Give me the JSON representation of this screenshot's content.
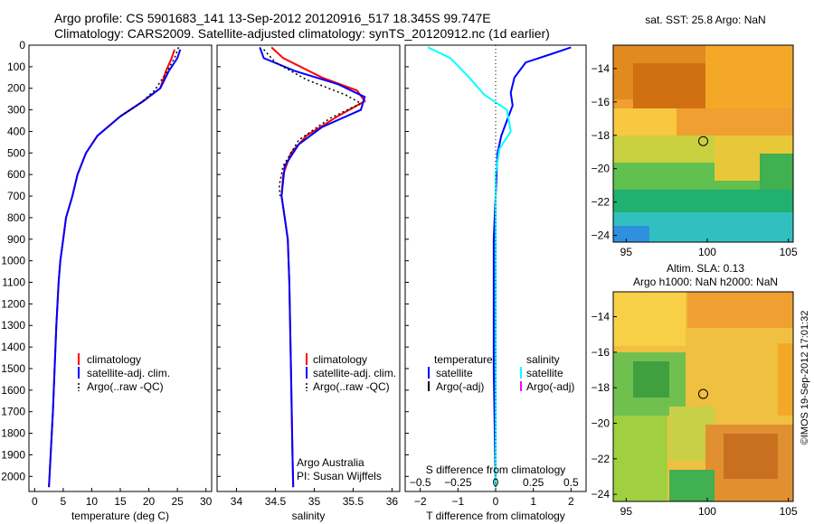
{
  "header": {
    "title_line1": "Argo profile: CS 5901683_141 13-Sep-2012 20120916_517 18.345S 99.747E",
    "title_line2": "Climatology: CARS2009. Satellite-adjusted climatology: synTS_20120912.nc (1d earlier)"
  },
  "depth_axis": {
    "ticks": [
      0,
      100,
      200,
      300,
      400,
      500,
      600,
      700,
      800,
      900,
      1000,
      1100,
      1200,
      1300,
      1400,
      1500,
      1600,
      1700,
      1800,
      1900,
      2000
    ],
    "range": [
      0,
      2070
    ]
  },
  "colors": {
    "climatology": "#ff0000",
    "satellite_adj": "#0000ff",
    "argo": "#000000",
    "salinity_satellite": "#00ffff",
    "salinity_argo": "#ff00ff",
    "map_land_ocean_cool": "#3399ff",
    "map_warm": "#e08020"
  },
  "chart_data": [
    {
      "type": "line",
      "panel": "temperature",
      "xlabel": "temperature (deg C)",
      "xlim": [
        -1,
        31
      ],
      "xticks": [
        0,
        5,
        10,
        15,
        20,
        25,
        30
      ],
      "legend": {
        "placement": "lower-left",
        "entries": [
          "climatology",
          "satellite-adj. clim.",
          "Argo(..raw -QC)"
        ]
      },
      "series": [
        {
          "name": "climatology",
          "color": "#ff0000",
          "points": [
            [
              24.5,
              20
            ],
            [
              24,
              60
            ],
            [
              23,
              120
            ],
            [
              22,
              200
            ],
            [
              19,
              260
            ],
            [
              15,
              330
            ],
            [
              11,
              420
            ],
            [
              9,
              500
            ],
            [
              7.5,
              600
            ],
            [
              6.6,
              700
            ],
            [
              5.5,
              800
            ],
            [
              5,
              900
            ],
            [
              4.5,
              1000
            ],
            [
              4.2,
              1100
            ],
            [
              3.8,
              1300
            ],
            [
              3.5,
              1500
            ],
            [
              3.2,
              1700
            ],
            [
              2.8,
              1900
            ],
            [
              2.5,
              2050
            ]
          ]
        },
        {
          "name": "satellite-adj. clim.",
          "color": "#0000ff",
          "points": [
            [
              25.5,
              20
            ],
            [
              25,
              60
            ],
            [
              23.5,
              120
            ],
            [
              22,
              200
            ],
            [
              19,
              260
            ],
            [
              15,
              330
            ],
            [
              11,
              420
            ],
            [
              9,
              500
            ],
            [
              7.5,
              600
            ],
            [
              6.6,
              700
            ],
            [
              5.5,
              800
            ],
            [
              5,
              900
            ],
            [
              4.5,
              1000
            ],
            [
              4.2,
              1100
            ],
            [
              3.8,
              1300
            ],
            [
              3.5,
              1500
            ],
            [
              3.2,
              1700
            ],
            [
              2.8,
              1900
            ],
            [
              2.5,
              2050
            ]
          ]
        },
        {
          "name": "Argo(..raw -QC)",
          "color": "#000000",
          "points": [
            [
              25.2,
              10
            ],
            [
              24.5,
              60
            ],
            [
              23,
              130
            ],
            [
              21,
              210
            ],
            [
              18.5,
              270
            ],
            [
              14.5,
              340
            ]
          ]
        }
      ]
    },
    {
      "type": "line",
      "panel": "salinity",
      "xlabel": "salinity",
      "xlim": [
        33.75,
        36.1
      ],
      "xticks": [
        34,
        34.5,
        35,
        35.5,
        36
      ],
      "xticklabels": [
        "34",
        "34.5",
        "35",
        "35.5",
        "36"
      ],
      "legend": {
        "placement": "lower-left",
        "entries": [
          "climatology",
          "satellite-adj. clim.",
          "Argo(..raw -QC)"
        ]
      },
      "annotation": [
        "Argo Australia",
        "PI: Susan Wijffels"
      ],
      "series": [
        {
          "name": "climatology",
          "color": "#ff0000",
          "points": [
            [
              34.45,
              10
            ],
            [
              34.6,
              60
            ],
            [
              35.1,
              150
            ],
            [
              35.55,
              210
            ],
            [
              35.65,
              260
            ],
            [
              35.3,
              330
            ],
            [
              34.9,
              420
            ],
            [
              34.7,
              500
            ],
            [
              34.6,
              600
            ],
            [
              34.58,
              700
            ],
            [
              34.62,
              800
            ],
            [
              34.66,
              900
            ],
            [
              34.68,
              1100
            ],
            [
              34.7,
              1500
            ],
            [
              34.72,
              1900
            ],
            [
              34.73,
              2050
            ]
          ]
        },
        {
          "name": "satellite-adj. clim.",
          "color": "#0000ff",
          "points": [
            [
              34.3,
              10
            ],
            [
              34.35,
              60
            ],
            [
              34.75,
              120
            ],
            [
              35.3,
              180
            ],
            [
              35.65,
              240
            ],
            [
              35.6,
              300
            ],
            [
              35.1,
              380
            ],
            [
              34.8,
              460
            ],
            [
              34.62,
              560
            ],
            [
              34.58,
              700
            ],
            [
              34.62,
              800
            ],
            [
              34.66,
              900
            ],
            [
              34.68,
              1100
            ],
            [
              34.7,
              1500
            ],
            [
              34.72,
              1900
            ],
            [
              34.73,
              2050
            ]
          ]
        },
        {
          "name": "Argo(..raw -QC)",
          "color": "#000000",
          "points": [
            [
              34.35,
              20
            ],
            [
              34.5,
              80
            ],
            [
              34.9,
              160
            ],
            [
              35.4,
              230
            ],
            [
              35.6,
              270
            ],
            [
              35.2,
              340
            ],
            [
              34.8,
              440
            ],
            [
              34.6,
              560
            ],
            [
              34.55,
              650
            ],
            [
              34.56,
              700
            ]
          ]
        }
      ]
    },
    {
      "type": "line",
      "panel": "difference",
      "xlabel": "T difference from climatology",
      "xlabel_top": "S difference from climatology",
      "xlim": [
        -2.4,
        2.4
      ],
      "xticks": [
        -2,
        -1,
        0,
        1,
        2
      ],
      "top_ticks": [
        -0.5,
        -0.25,
        0,
        0.25,
        0.5
      ],
      "top_ticklabels": [
        "−0.5",
        "−0.25",
        "0",
        "0.25",
        "0.5"
      ],
      "legend": {
        "placement": "lower-center",
        "temperature_header": "temperature",
        "salinity_header": "salinity",
        "temperature_entries": [
          "satellite",
          "Argo(-adj)"
        ],
        "salinity_entries": [
          "satellite",
          "Argo(-adj)"
        ]
      },
      "series": [
        {
          "name": "satellite",
          "color": "#0000ff",
          "points": [
            [
              2,
              10
            ],
            [
              1.5,
              40
            ],
            [
              0.8,
              80
            ],
            [
              0.5,
              150
            ],
            [
              0.4,
              220
            ],
            [
              0.45,
              280
            ],
            [
              0.3,
              350
            ],
            [
              0.15,
              420
            ],
            [
              0.05,
              500
            ],
            [
              0,
              700
            ],
            [
              -0.05,
              900
            ],
            [
              -0.05,
              1500
            ],
            [
              0,
              2050
            ]
          ]
        },
        {
          "name": "satellite",
          "color": "#00ffff",
          "points": [
            [
              -1.8,
              10
            ],
            [
              -1.2,
              60
            ],
            [
              -0.7,
              150
            ],
            [
              -0.3,
              230
            ],
            [
              0.3,
              300
            ],
            [
              0.4,
              400
            ],
            [
              0.1,
              480
            ],
            [
              0,
              600
            ],
            [
              0,
              2050
            ]
          ]
        }
      ]
    },
    {
      "type": "heatmap",
      "panel": "sst-map",
      "title": "sat. SST: 25.8  Argo: NaN",
      "xticks": [
        95,
        100,
        105
      ],
      "yticks": [
        -14,
        -16,
        -18,
        -20,
        -22,
        -24
      ],
      "xlim": [
        94.2,
        105.3
      ],
      "ylim": [
        -24.4,
        -12.6
      ],
      "marker": {
        "lon": 99.75,
        "lat": -18.35
      }
    },
    {
      "type": "heatmap",
      "panel": "sla-map",
      "title_line1": "Altim. SLA: 0.13",
      "title_line2": "Argo h1000: NaN h2000: NaN",
      "xticks": [
        95,
        100,
        105
      ],
      "yticks": [
        -14,
        -16,
        -18,
        -20,
        -22,
        -24
      ],
      "xlim": [
        94.2,
        105.3
      ],
      "ylim": [
        -24.4,
        -12.6
      ],
      "marker": {
        "lon": 99.75,
        "lat": -18.35
      }
    }
  ],
  "side_stamp": "©IMOS 19-Sep-2012 17:01:32"
}
